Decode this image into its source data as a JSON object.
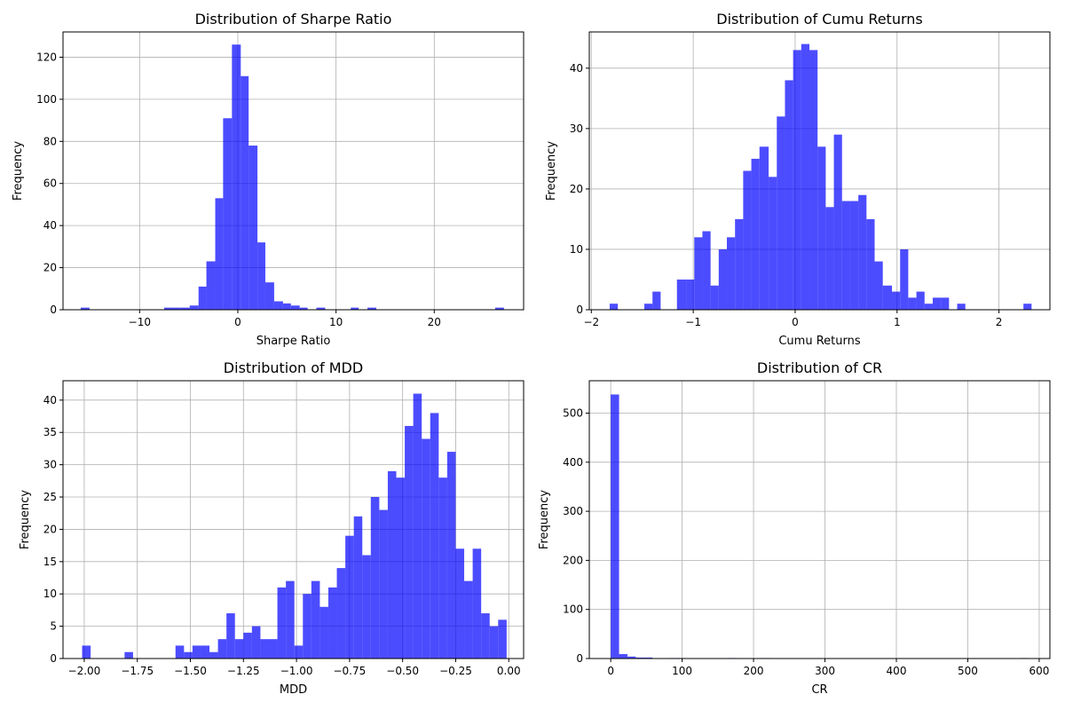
{
  "bar_color": "#4d4dff",
  "chart_data": [
    {
      "type": "bar",
      "title": "Distribution of Sharpe Ratio",
      "xlabel": "Sharpe Ratio",
      "ylabel": "Frequency",
      "xlim": [
        -17.8,
        29.1
      ],
      "ylim": [
        0,
        132
      ],
      "xticks": [
        -10,
        0,
        10,
        20
      ],
      "xtick_labels": [
        "−10",
        "0",
        "10",
        "20"
      ],
      "yticks": [
        0,
        20,
        40,
        60,
        80,
        100,
        120
      ],
      "ytick_labels": [
        "0",
        "20",
        "40",
        "60",
        "80",
        "100",
        "120"
      ],
      "grid": true,
      "bins": [
        {
          "x0": -16.0,
          "x1": -15.1,
          "y": 1
        },
        {
          "x0": -7.5,
          "x1": -6.6,
          "y": 1
        },
        {
          "x0": -6.6,
          "x1": -5.8,
          "y": 1
        },
        {
          "x0": -5.8,
          "x1": -4.9,
          "y": 1
        },
        {
          "x0": -4.9,
          "x1": -4.0,
          "y": 2
        },
        {
          "x0": -4.0,
          "x1": -3.2,
          "y": 11
        },
        {
          "x0": -3.2,
          "x1": -2.3,
          "y": 23
        },
        {
          "x0": -2.3,
          "x1": -1.5,
          "y": 53
        },
        {
          "x0": -1.5,
          "x1": -0.6,
          "y": 91
        },
        {
          "x0": -0.6,
          "x1": 0.3,
          "y": 126
        },
        {
          "x0": 0.3,
          "x1": 1.1,
          "y": 111
        },
        {
          "x0": 1.1,
          "x1": 2.0,
          "y": 78
        },
        {
          "x0": 2.0,
          "x1": 2.8,
          "y": 32
        },
        {
          "x0": 2.8,
          "x1": 3.7,
          "y": 13
        },
        {
          "x0": 3.7,
          "x1": 4.6,
          "y": 4
        },
        {
          "x0": 4.6,
          "x1": 5.4,
          "y": 3
        },
        {
          "x0": 5.4,
          "x1": 6.3,
          "y": 2
        },
        {
          "x0": 6.3,
          "x1": 7.1,
          "y": 1
        },
        {
          "x0": 8.0,
          "x1": 8.9,
          "y": 1
        },
        {
          "x0": 11.5,
          "x1": 12.3,
          "y": 1
        },
        {
          "x0": 13.2,
          "x1": 14.1,
          "y": 1
        },
        {
          "x0": 26.2,
          "x1": 27.1,
          "y": 1
        }
      ]
    },
    {
      "type": "bar",
      "title": "Distribution of Cumu Returns",
      "xlabel": "Cumu Returns",
      "ylabel": "Frequency",
      "xlim": [
        -2.02,
        2.5
      ],
      "ylim": [
        0,
        46
      ],
      "xticks": [
        -2,
        -1,
        0,
        1,
        2
      ],
      "xtick_labels": [
        "−2",
        "−1",
        "0",
        "1",
        "2"
      ],
      "yticks": [
        0,
        10,
        20,
        30,
        40
      ],
      "ytick_labels": [
        "0",
        "10",
        "20",
        "30",
        "40"
      ],
      "grid": true,
      "bins": [
        {
          "x0": -1.82,
          "x1": -1.74,
          "y": 1
        },
        {
          "x0": -1.48,
          "x1": -1.4,
          "y": 1
        },
        {
          "x0": -1.4,
          "x1": -1.32,
          "y": 3
        },
        {
          "x0": -1.16,
          "x1": -1.07,
          "y": 5
        },
        {
          "x0": -1.07,
          "x1": -0.99,
          "y": 5
        },
        {
          "x0": -0.99,
          "x1": -0.91,
          "y": 12
        },
        {
          "x0": -0.91,
          "x1": -0.83,
          "y": 13
        },
        {
          "x0": -0.83,
          "x1": -0.75,
          "y": 4
        },
        {
          "x0": -0.75,
          "x1": -0.67,
          "y": 10
        },
        {
          "x0": -0.67,
          "x1": -0.59,
          "y": 12
        },
        {
          "x0": -0.59,
          "x1": -0.51,
          "y": 15
        },
        {
          "x0": -0.51,
          "x1": -0.43,
          "y": 23
        },
        {
          "x0": -0.43,
          "x1": -0.35,
          "y": 25
        },
        {
          "x0": -0.35,
          "x1": -0.26,
          "y": 27
        },
        {
          "x0": -0.26,
          "x1": -0.18,
          "y": 22
        },
        {
          "x0": -0.18,
          "x1": -0.1,
          "y": 32
        },
        {
          "x0": -0.1,
          "x1": -0.02,
          "y": 38
        },
        {
          "x0": -0.02,
          "x1": 0.06,
          "y": 43
        },
        {
          "x0": 0.06,
          "x1": 0.14,
          "y": 44
        },
        {
          "x0": 0.14,
          "x1": 0.22,
          "y": 43
        },
        {
          "x0": 0.22,
          "x1": 0.3,
          "y": 27
        },
        {
          "x0": 0.3,
          "x1": 0.38,
          "y": 17
        },
        {
          "x0": 0.38,
          "x1": 0.46,
          "y": 29
        },
        {
          "x0": 0.46,
          "x1": 0.54,
          "y": 18
        },
        {
          "x0": 0.54,
          "x1": 0.62,
          "y": 18
        },
        {
          "x0": 0.62,
          "x1": 0.7,
          "y": 19
        },
        {
          "x0": 0.7,
          "x1": 0.78,
          "y": 15
        },
        {
          "x0": 0.78,
          "x1": 0.86,
          "y": 8
        },
        {
          "x0": 0.86,
          "x1": 0.95,
          "y": 4
        },
        {
          "x0": 0.95,
          "x1": 1.03,
          "y": 3
        },
        {
          "x0": 1.03,
          "x1": 1.11,
          "y": 10
        },
        {
          "x0": 1.11,
          "x1": 1.19,
          "y": 2
        },
        {
          "x0": 1.19,
          "x1": 1.27,
          "y": 3
        },
        {
          "x0": 1.27,
          "x1": 1.35,
          "y": 1
        },
        {
          "x0": 1.35,
          "x1": 1.43,
          "y": 2
        },
        {
          "x0": 1.43,
          "x1": 1.51,
          "y": 2
        },
        {
          "x0": 1.59,
          "x1": 1.67,
          "y": 1
        },
        {
          "x0": 2.24,
          "x1": 2.32,
          "y": 1
        }
      ]
    },
    {
      "type": "bar",
      "title": "Distribution of MDD",
      "xlabel": "MDD",
      "ylabel": "Frequency",
      "xlim": [
        -2.1,
        0.07
      ],
      "ylim": [
        0,
        43
      ],
      "xticks": [
        -2.0,
        -1.75,
        -1.5,
        -1.25,
        -1.0,
        -0.75,
        -0.5,
        -0.25,
        0.0
      ],
      "xtick_labels": [
        "−2.00",
        "−1.75",
        "−1.50",
        "−1.25",
        "−1.00",
        "−0.75",
        "−0.50",
        "−0.25",
        "0.00"
      ],
      "yticks": [
        0,
        5,
        10,
        15,
        20,
        25,
        30,
        35,
        40
      ],
      "ytick_labels": [
        "0",
        "5",
        "10",
        "15",
        "20",
        "25",
        "30",
        "35",
        "40"
      ],
      "grid": true,
      "bins": [
        {
          "x0": -2.01,
          "x1": -1.97,
          "y": 2
        },
        {
          "x0": -1.81,
          "x1": -1.77,
          "y": 1
        },
        {
          "x0": -1.57,
          "x1": -1.53,
          "y": 2
        },
        {
          "x0": -1.53,
          "x1": -1.49,
          "y": 1
        },
        {
          "x0": -1.49,
          "x1": -1.45,
          "y": 2
        },
        {
          "x0": -1.45,
          "x1": -1.41,
          "y": 2
        },
        {
          "x0": -1.41,
          "x1": -1.37,
          "y": 1
        },
        {
          "x0": -1.37,
          "x1": -1.33,
          "y": 3
        },
        {
          "x0": -1.33,
          "x1": -1.29,
          "y": 7
        },
        {
          "x0": -1.29,
          "x1": -1.25,
          "y": 3
        },
        {
          "x0": -1.25,
          "x1": -1.21,
          "y": 4
        },
        {
          "x0": -1.21,
          "x1": -1.17,
          "y": 5
        },
        {
          "x0": -1.17,
          "x1": -1.13,
          "y": 3
        },
        {
          "x0": -1.13,
          "x1": -1.09,
          "y": 3
        },
        {
          "x0": -1.09,
          "x1": -1.05,
          "y": 11
        },
        {
          "x0": -1.05,
          "x1": -1.01,
          "y": 12
        },
        {
          "x0": -1.01,
          "x1": -0.97,
          "y": 2
        },
        {
          "x0": -0.97,
          "x1": -0.93,
          "y": 10
        },
        {
          "x0": -0.93,
          "x1": -0.89,
          "y": 12
        },
        {
          "x0": -0.89,
          "x1": -0.85,
          "y": 8
        },
        {
          "x0": -0.85,
          "x1": -0.81,
          "y": 11
        },
        {
          "x0": -0.81,
          "x1": -0.77,
          "y": 14
        },
        {
          "x0": -0.77,
          "x1": -0.73,
          "y": 19
        },
        {
          "x0": -0.73,
          "x1": -0.69,
          "y": 22
        },
        {
          "x0": -0.69,
          "x1": -0.65,
          "y": 16
        },
        {
          "x0": -0.65,
          "x1": -0.61,
          "y": 25
        },
        {
          "x0": -0.61,
          "x1": -0.57,
          "y": 23
        },
        {
          "x0": -0.57,
          "x1": -0.53,
          "y": 29
        },
        {
          "x0": -0.53,
          "x1": -0.49,
          "y": 28
        },
        {
          "x0": -0.49,
          "x1": -0.45,
          "y": 36
        },
        {
          "x0": -0.45,
          "x1": -0.41,
          "y": 41
        },
        {
          "x0": -0.41,
          "x1": -0.37,
          "y": 34
        },
        {
          "x0": -0.37,
          "x1": -0.33,
          "y": 38
        },
        {
          "x0": -0.33,
          "x1": -0.29,
          "y": 28
        },
        {
          "x0": -0.29,
          "x1": -0.25,
          "y": 32
        },
        {
          "x0": -0.25,
          "x1": -0.21,
          "y": 17
        },
        {
          "x0": -0.21,
          "x1": -0.17,
          "y": 12
        },
        {
          "x0": -0.17,
          "x1": -0.13,
          "y": 17
        },
        {
          "x0": -0.13,
          "x1": -0.09,
          "y": 7
        },
        {
          "x0": -0.09,
          "x1": -0.05,
          "y": 5
        },
        {
          "x0": -0.05,
          "x1": -0.01,
          "y": 6
        }
      ]
    },
    {
      "type": "bar",
      "title": "Distribution of CR",
      "xlabel": "CR",
      "ylabel": "Frequency",
      "xlim": [
        -30,
        615
      ],
      "ylim": [
        0,
        566
      ],
      "xticks": [
        0,
        100,
        200,
        300,
        400,
        500,
        600
      ],
      "xtick_labels": [
        "0",
        "100",
        "200",
        "300",
        "400",
        "500",
        "600"
      ],
      "yticks": [
        0,
        100,
        200,
        300,
        400,
        500
      ],
      "ytick_labels": [
        "0",
        "100",
        "200",
        "300",
        "400",
        "500"
      ],
      "grid": true,
      "bins": [
        {
          "x0": 0,
          "x1": 11.7,
          "y": 538
        },
        {
          "x0": 11.7,
          "x1": 23.4,
          "y": 9
        },
        {
          "x0": 23.4,
          "x1": 35.1,
          "y": 4
        },
        {
          "x0": 35.1,
          "x1": 46.8,
          "y": 2
        },
        {
          "x0": 46.8,
          "x1": 58.5,
          "y": 2
        },
        {
          "x0": 82,
          "x1": 93.6,
          "y": 1
        },
        {
          "x0": 93.6,
          "x1": 105.3,
          "y": 1
        },
        {
          "x0": 163.9,
          "x1": 175.6,
          "y": 1
        },
        {
          "x0": 210.7,
          "x1": 222.4,
          "y": 1
        },
        {
          "x0": 573.4,
          "x1": 585.1,
          "y": 1
        }
      ]
    }
  ]
}
